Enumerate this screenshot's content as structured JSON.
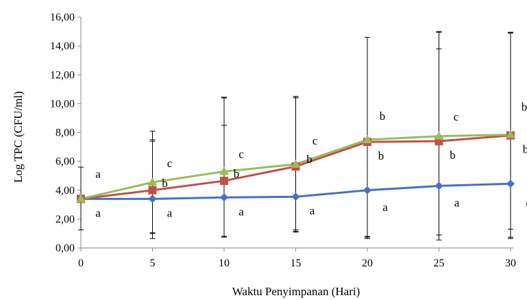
{
  "chart_data": {
    "type": "line",
    "xlabel": "Waktu Penyimpanan  (Hari)",
    "ylabel": "Log TPC (CFU/ml)",
    "x": [
      0,
      5,
      10,
      15,
      20,
      25,
      30
    ],
    "x_tick_labels": [
      "0",
      "5",
      "10",
      "15",
      "20",
      "25",
      "30"
    ],
    "ylim": [
      0,
      16
    ],
    "y_tick_labels": [
      "0,00",
      "2,00",
      "4,00",
      "6,00",
      "8,00",
      "10,00",
      "12,00",
      "14,00",
      "16,00"
    ],
    "grid": false,
    "legend": "none",
    "series": [
      {
        "color": "#4472C4",
        "marker": "diamond",
        "values": [
          3.4,
          3.4,
          3.5,
          3.55,
          4.0,
          4.3,
          4.45
        ],
        "error_low": [
          1.25,
          1.0,
          0.8,
          1.15,
          0.8,
          0.9,
          1.3
        ],
        "error_high": [
          5.6,
          7.5,
          8.5,
          10.5,
          14.6,
          13.8,
          14.9
        ],
        "letters": [
          "a",
          "a",
          "a",
          "a",
          "a",
          "a",
          "a"
        ]
      },
      {
        "color": "#C0504D",
        "marker": "square",
        "values": [
          3.4,
          4.0,
          4.65,
          5.65,
          7.35,
          7.4,
          7.8
        ],
        "error_low": [
          3.4,
          0.65,
          0.75,
          1.1,
          0.65,
          0.55,
          0.65
        ],
        "error_high": [
          3.4,
          7.4,
          10.45,
          10.5,
          14.6,
          15.0,
          14.9
        ],
        "letters": [
          "",
          "b",
          "b",
          "b",
          "b",
          "b",
          "b"
        ]
      },
      {
        "color": "#9BBB59",
        "marker": "triangle",
        "values": [
          3.4,
          4.55,
          5.3,
          5.8,
          7.5,
          7.75,
          7.85
        ],
        "error_low": [
          3.4,
          1.05,
          0.8,
          1.25,
          0.75,
          0.9,
          0.75
        ],
        "error_high": [
          3.4,
          8.1,
          10.4,
          10.4,
          14.6,
          14.95,
          14.95
        ],
        "letters": [
          "a",
          "c",
          "c",
          "c",
          "b",
          "c",
          "b"
        ]
      }
    ]
  }
}
